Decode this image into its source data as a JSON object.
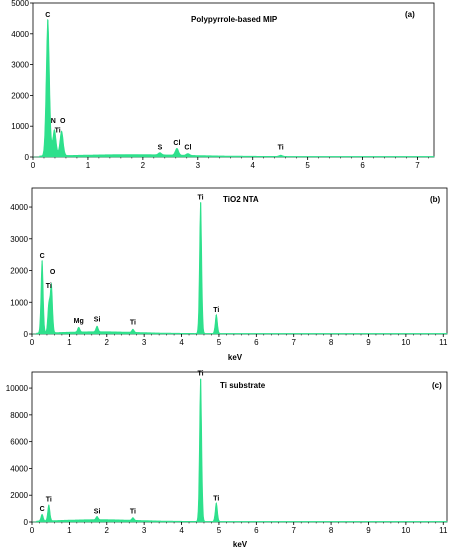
{
  "colors": {
    "spectrum": "#2ee08c",
    "axis": "#000000",
    "background": "#ffffff"
  },
  "chart_data": [
    {
      "type": "area",
      "panel_label": "(a)",
      "title": "Polypyrrole-based MIP",
      "xlabel": "",
      "ylabel": "",
      "xlim": [
        0,
        7.3
      ],
      "ylim": [
        0,
        5000
      ],
      "x_ticks": [
        0,
        1,
        2,
        3,
        4,
        5,
        6,
        7
      ],
      "y_ticks": [
        0,
        1000,
        2000,
        3000,
        4000,
        5000
      ],
      "grid": false,
      "peaks": [
        {
          "x": 0.27,
          "y": 4450
        },
        {
          "x": 0.39,
          "y": 850
        },
        {
          "x": 0.52,
          "y": 800
        },
        {
          "x": 2.31,
          "y": 70
        },
        {
          "x": 2.62,
          "y": 220
        },
        {
          "x": 2.82,
          "y": 60
        },
        {
          "x": 4.51,
          "y": 40
        }
      ],
      "annotations": [
        {
          "text": "C",
          "x": 0.27,
          "y": 4450
        },
        {
          "text": "N",
          "x": 0.37,
          "y": 1000
        },
        {
          "text": "O",
          "x": 0.54,
          "y": 1000
        },
        {
          "text": "Ti",
          "x": 0.45,
          "y": 700
        },
        {
          "text": "S",
          "x": 2.31,
          "y": 150
        },
        {
          "text": "Cl",
          "x": 2.62,
          "y": 300
        },
        {
          "text": "Cl",
          "x": 2.82,
          "y": 150
        },
        {
          "text": "Ti",
          "x": 4.51,
          "y": 150
        }
      ]
    },
    {
      "type": "area",
      "panel_label": "(b)",
      "title": "TiO2 NTA",
      "xlabel": "keV",
      "ylabel": "",
      "xlim": [
        0,
        11.1
      ],
      "ylim": [
        0,
        4600
      ],
      "x_ticks": [
        0,
        1,
        2,
        3,
        4,
        5,
        6,
        7,
        8,
        9,
        10,
        11
      ],
      "y_ticks": [
        0,
        1000,
        2000,
        3000,
        4000
      ],
      "grid": false,
      "peaks": [
        {
          "x": 0.27,
          "y": 2300
        },
        {
          "x": 0.45,
          "y": 900
        },
        {
          "x": 0.52,
          "y": 1500
        },
        {
          "x": 1.25,
          "y": 150
        },
        {
          "x": 1.74,
          "y": 180
        },
        {
          "x": 2.7,
          "y": 100
        },
        {
          "x": 4.51,
          "y": 4150
        },
        {
          "x": 4.93,
          "y": 600
        }
      ],
      "annotations": [
        {
          "text": "C",
          "x": 0.27,
          "y": 2300
        },
        {
          "text": "O",
          "x": 0.55,
          "y": 1800
        },
        {
          "text": "Ti",
          "x": 0.45,
          "y": 1350
        },
        {
          "text": "Mg",
          "x": 1.25,
          "y": 250
        },
        {
          "text": "Si",
          "x": 1.74,
          "y": 300
        },
        {
          "text": "Ti",
          "x": 2.7,
          "y": 200
        },
        {
          "text": "Ti",
          "x": 4.51,
          "y": 4150
        },
        {
          "text": "Ti",
          "x": 4.93,
          "y": 600
        }
      ]
    },
    {
      "type": "area",
      "panel_label": "(c)",
      "title": "Ti substrate",
      "xlabel": "keV",
      "ylabel": "",
      "xlim": [
        0,
        11.1
      ],
      "ylim": [
        0,
        11200
      ],
      "x_ticks": [
        0,
        1,
        2,
        3,
        4,
        5,
        6,
        7,
        8,
        9,
        10,
        11
      ],
      "y_ticks": [
        0,
        2000,
        4000,
        6000,
        8000,
        10000
      ],
      "grid": false,
      "peaks": [
        {
          "x": 0.27,
          "y": 500
        },
        {
          "x": 0.45,
          "y": 1200
        },
        {
          "x": 1.74,
          "y": 250
        },
        {
          "x": 2.7,
          "y": 200
        },
        {
          "x": 4.51,
          "y": 10700
        },
        {
          "x": 4.93,
          "y": 1400
        }
      ],
      "annotations": [
        {
          "text": "C",
          "x": 0.27,
          "y": 600
        },
        {
          "text": "Ti",
          "x": 0.45,
          "y": 1300
        },
        {
          "text": "Si",
          "x": 1.74,
          "y": 400
        },
        {
          "text": "Ti",
          "x": 2.7,
          "y": 400
        },
        {
          "text": "Ti",
          "x": 4.51,
          "y": 10700
        },
        {
          "text": "Ti",
          "x": 4.93,
          "y": 1400
        }
      ]
    }
  ]
}
